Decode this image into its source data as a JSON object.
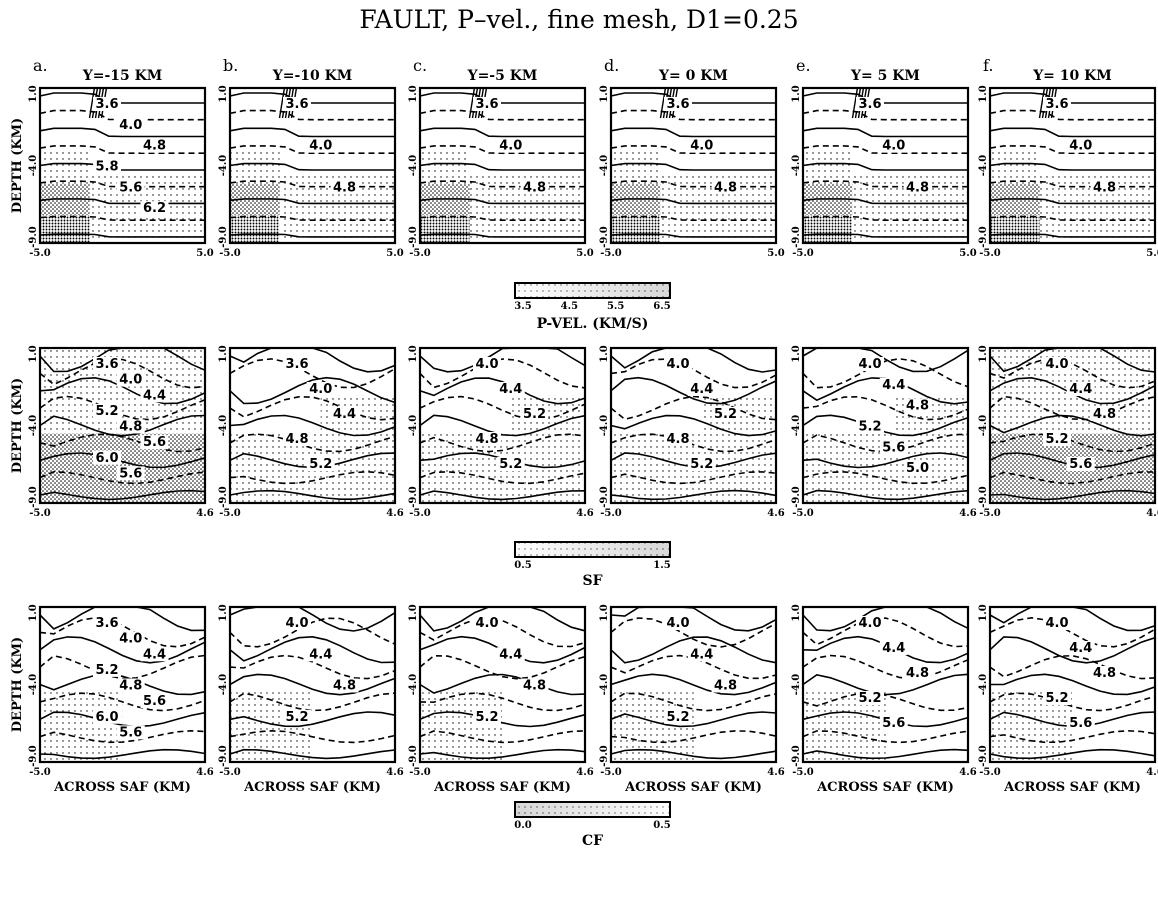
{
  "title": "FAULT, P–vel., fine mesh, D1=0.25",
  "panels": [
    {
      "letter": "a.",
      "label": "Y=-15 KM"
    },
    {
      "letter": "b.",
      "label": "Y=-10 KM"
    },
    {
      "letter": "c.",
      "label": "Y=-5 KM"
    },
    {
      "letter": "d.",
      "label": "Y= 0 KM"
    },
    {
      "letter": "e.",
      "label": "Y= 5 KM"
    },
    {
      "letter": "f.",
      "label": "Y= 10 KM"
    }
  ],
  "ylabel": "DEPTH (KM)",
  "xlabel": "ACROSS SAF (KM)",
  "y_ticks": [
    "1.0",
    "-4.0",
    "-9.0"
  ],
  "colors": {
    "ink": "#000000",
    "paper": "#ffffff"
  },
  "chart_data": [
    {
      "type": "heatmap",
      "name": "P-vel",
      "x_ticks": [
        "-5.0",
        "5.0"
      ],
      "xlim": [
        -5.0,
        5.0
      ],
      "ylim": [
        -9.0,
        1.0
      ],
      "colorbar": {
        "label": "P-VEL. (KM/S)",
        "ticks": [
          "3.5",
          "4.5",
          "5.5",
          "6.5"
        ],
        "range": [
          3.5,
          6.5
        ],
        "light_to_dark": true
      },
      "contour_labels": [
        [
          "3.6",
          "4.0",
          "4.8",
          "5.8",
          "5.6",
          "6.2"
        ],
        [
          "3.6",
          "4.0",
          "4.8"
        ],
        [
          "3.6",
          "4.0",
          "4.8"
        ],
        [
          "3.6",
          "4.0",
          "4.8"
        ],
        [
          "3.6",
          "4.0",
          "4.8"
        ],
        [
          "3.6",
          "4.0",
          "4.8"
        ]
      ]
    },
    {
      "type": "heatmap",
      "name": "SF",
      "x_ticks": [
        "-5.0",
        "4.6"
      ],
      "xlim": [
        -5.0,
        4.6
      ],
      "ylim": [
        -9.0,
        1.0
      ],
      "colorbar": {
        "label": "SF",
        "ticks": [
          "0.5",
          "1.5"
        ],
        "range": [
          0.5,
          1.5
        ],
        "light_to_dark": true
      },
      "contour_labels": [
        [
          "3.6",
          "4.0",
          "4.4",
          "5.2",
          "4.8",
          "5.6",
          "6.0",
          "5.6"
        ],
        [
          "3.6",
          "4.0",
          "4.4",
          "4.8",
          "5.2"
        ],
        [
          "4.0",
          "4.4",
          "5.2",
          "4.8",
          "5.2"
        ],
        [
          "4.0",
          "4.4",
          "5.2",
          "4.8",
          "5.2"
        ],
        [
          "4.0",
          "4.4",
          "4.8",
          "5.2",
          "5.6",
          "5.0"
        ],
        [
          "4.0",
          "4.4",
          "4.8",
          "5.2",
          "5.6"
        ]
      ]
    },
    {
      "type": "heatmap",
      "name": "CF",
      "x_ticks": [
        "-5.0",
        "4.6"
      ],
      "xlim": [
        -5.0,
        4.6
      ],
      "ylim": [
        -9.0,
        1.0
      ],
      "colorbar": {
        "label": "CF",
        "ticks": [
          "0.0",
          "0.5"
        ],
        "range": [
          0.0,
          0.5
        ],
        "light_to_dark": false
      },
      "contour_labels": [
        [
          "3.6",
          "4.0",
          "4.4",
          "5.2",
          "4.8",
          "5.6",
          "6.0",
          "5.6"
        ],
        [
          "4.0",
          "4.4",
          "4.8",
          "5.2"
        ],
        [
          "4.0",
          "4.4",
          "4.8",
          "5.2"
        ],
        [
          "4.0",
          "4.4",
          "4.8",
          "5.2"
        ],
        [
          "4.0",
          "4.4",
          "4.8",
          "5.2",
          "5.6"
        ],
        [
          "4.0",
          "4.4",
          "4.8",
          "5.2",
          "5.6"
        ]
      ]
    }
  ]
}
